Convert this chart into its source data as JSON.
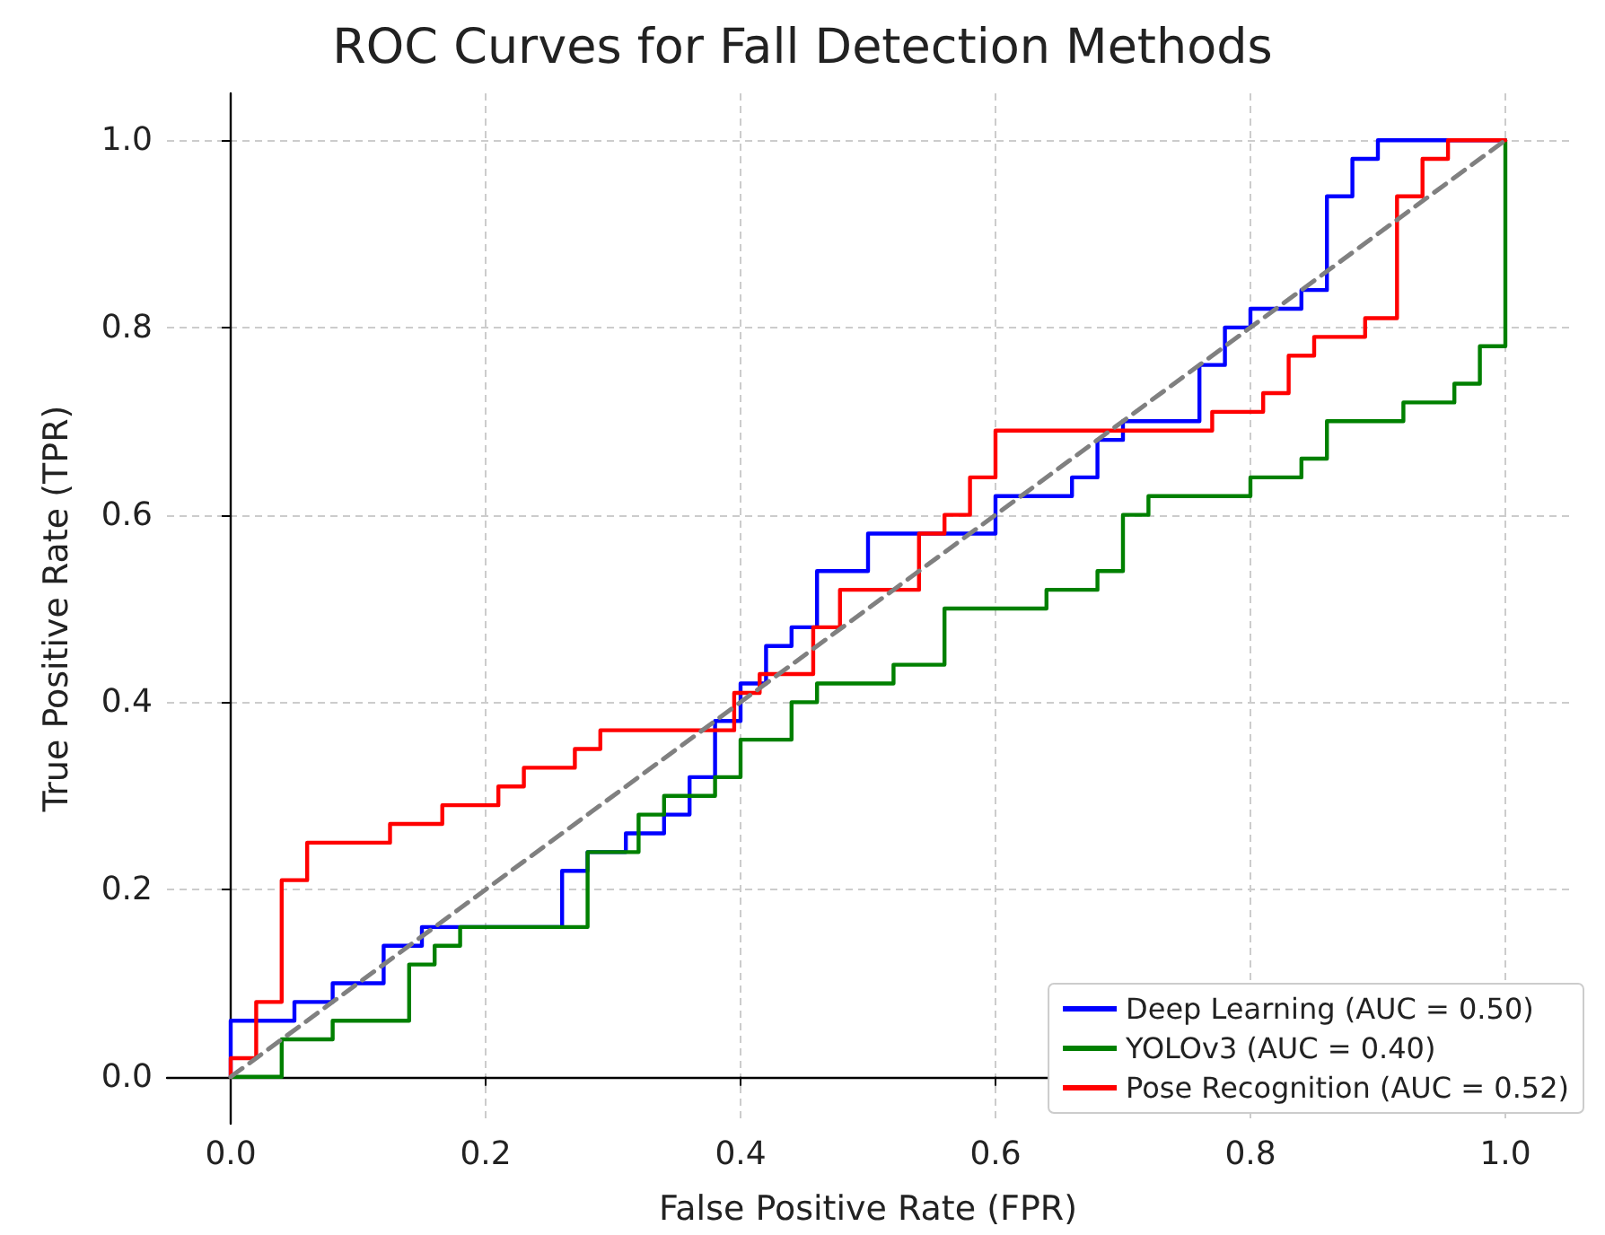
{
  "chart_data": {
    "type": "step",
    "title": "ROC Curves for Fall Detection Methods",
    "xlabel": "False Positive Rate (FPR)",
    "ylabel": "True Positive Rate (TPR)",
    "xlim": [
      -0.05,
      1.05
    ],
    "ylim": [
      -0.05,
      1.05
    ],
    "xticks": [
      {
        "value": 0,
        "label": "0.0"
      },
      0.2,
      0.4,
      0.6,
      0.8,
      {
        "value": 1,
        "label": "1.0"
      }
    ],
    "yticks": [
      {
        "value": 0,
        "label": "0.0"
      },
      0.2,
      0.4,
      0.6,
      0.8,
      {
        "value": 1,
        "label": "1.0"
      }
    ],
    "grid": true,
    "legend": "bottom right",
    "series": [
      {
        "name": "Deep Learning (AUC = 0.50)",
        "color": "#0000ff",
        "x": [
          0,
          0,
          0.05,
          0.08,
          0.12,
          0.15,
          0.26,
          0.28,
          0.31,
          0.34,
          0.36,
          0.38,
          0.4,
          0.42,
          0.44,
          0.46,
          0.5,
          0.6,
          0.66,
          0.68,
          0.7,
          0.76,
          0.78,
          0.8,
          0.84,
          0.86,
          0.88,
          0.9,
          1.0
        ],
        "values": [
          0,
          0.06,
          0.08,
          0.1,
          0.14,
          0.16,
          0.22,
          0.24,
          0.26,
          0.28,
          0.32,
          0.38,
          0.42,
          0.46,
          0.48,
          0.54,
          0.58,
          0.62,
          0.64,
          0.68,
          0.7,
          0.76,
          0.8,
          0.82,
          0.84,
          0.94,
          0.98,
          1.0,
          1.0
        ]
      },
      {
        "name": "YOLOv3 (AUC = 0.40)",
        "color": "#008000",
        "x": [
          0,
          0.04,
          0.08,
          0.14,
          0.16,
          0.18,
          0.28,
          0.32,
          0.34,
          0.38,
          0.4,
          0.44,
          0.46,
          0.52,
          0.56,
          0.64,
          0.68,
          0.7,
          0.72,
          0.8,
          0.84,
          0.86,
          0.92,
          0.96,
          0.98,
          1.0,
          1.0
        ],
        "values": [
          0,
          0.04,
          0.06,
          0.12,
          0.14,
          0.16,
          0.24,
          0.28,
          0.3,
          0.32,
          0.36,
          0.4,
          0.42,
          0.44,
          0.5,
          0.52,
          0.54,
          0.6,
          0.62,
          0.64,
          0.66,
          0.7,
          0.72,
          0.74,
          0.78,
          0.78,
          1.0
        ]
      },
      {
        "name": "Pose Recognition (AUC = 0.52)",
        "color": "#ff0000",
        "x": [
          0,
          0,
          0.02,
          0.04,
          0.06,
          0.125,
          0.166,
          0.21,
          0.23,
          0.27,
          0.29,
          0.395,
          0.415,
          0.457,
          0.478,
          0.54,
          0.56,
          0.58,
          0.6,
          0.77,
          0.81,
          0.83,
          0.85,
          0.89,
          0.915,
          0.935,
          0.955,
          1.0
        ],
        "values": [
          0,
          0.02,
          0.08,
          0.21,
          0.25,
          0.27,
          0.29,
          0.31,
          0.33,
          0.35,
          0.37,
          0.41,
          0.43,
          0.48,
          0.52,
          0.58,
          0.6,
          0.64,
          0.69,
          0.71,
          0.73,
          0.77,
          0.79,
          0.81,
          0.94,
          0.98,
          1.0,
          1.0
        ]
      },
      {
        "type": "line",
        "line_style": "dashed",
        "color": "#808080",
        "x": [
          0,
          1
        ],
        "values": [
          0,
          1
        ]
      }
    ]
  }
}
